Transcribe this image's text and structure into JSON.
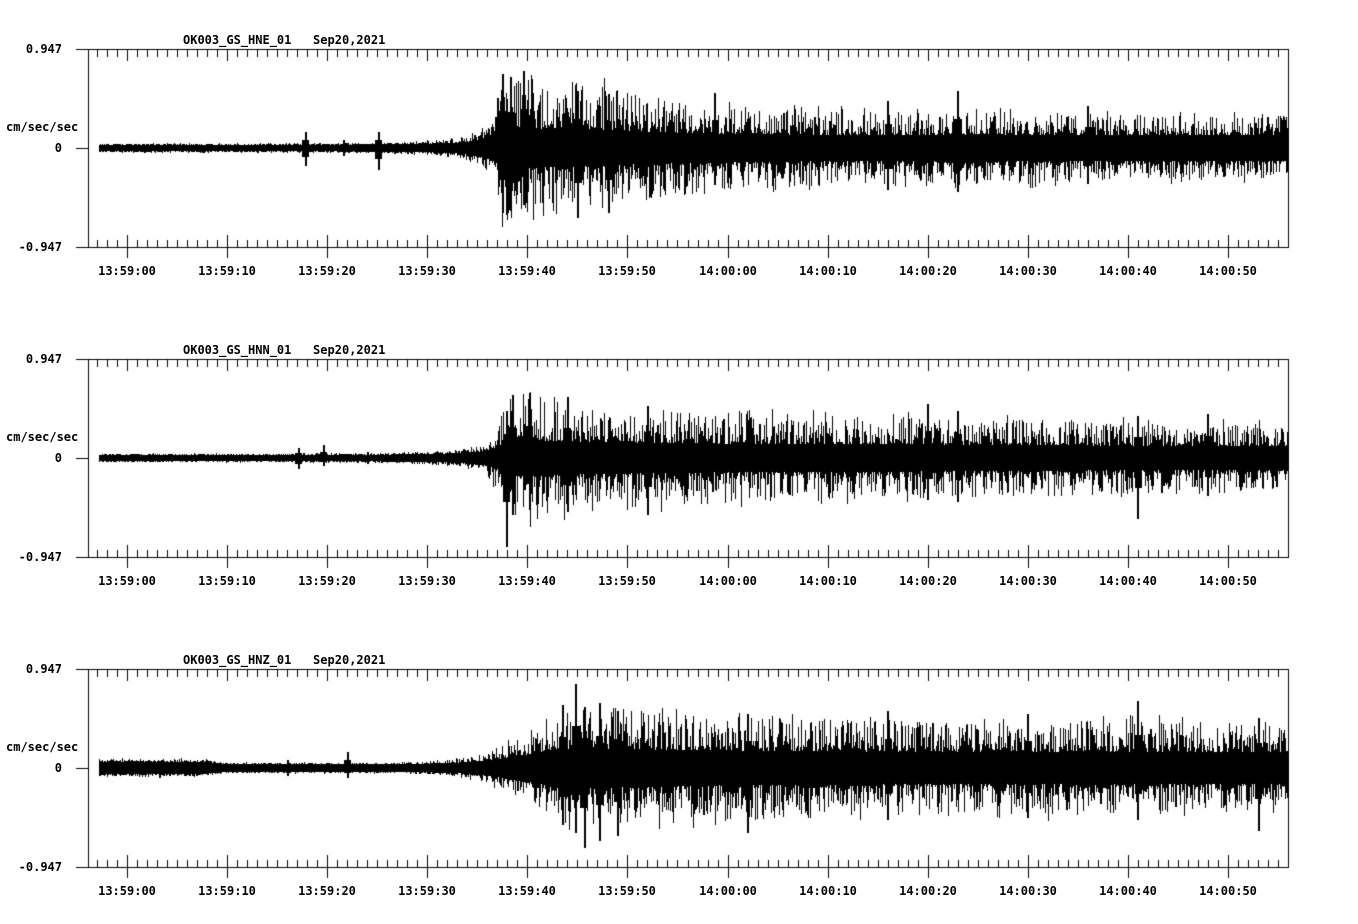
{
  "figure": {
    "background": "#ffffff",
    "ink": "#000000",
    "y_axis": {
      "top": "0.947",
      "zero": "0",
      "bottom": "-0.947",
      "unit": "cm/sec/sec"
    },
    "x_tick_labels": [
      "13:59:00",
      "13:59:10",
      "13:59:20",
      "13:59:30",
      "13:59:40",
      "13:59:50",
      "14:00:00",
      "14:00:10",
      "14:00:20",
      "14:00:30",
      "14:00:40",
      "14:00:50"
    ],
    "panels": [
      {
        "title": "OK003_GS_HNE_01   Sep20,2021"
      },
      {
        "title": "OK003_GS_HNN_01   Sep20,2021"
      },
      {
        "title": "OK003_GS_HNZ_01   Sep20,2021"
      }
    ]
  },
  "chart_data": [
    {
      "type": "line",
      "subtype": "seismogram",
      "title": "OK003_GS_HNE_01",
      "date_label": "Sep20,2021",
      "ylabel": "cm/sec/sec",
      "ylim": [
        -0.947,
        0.947
      ],
      "y_ticks": [
        0.947,
        0,
        -0.947
      ],
      "x_tick_labels": [
        "13:59:00",
        "13:59:10",
        "13:59:20",
        "13:59:30",
        "13:59:40",
        "13:59:50",
        "14:00:00",
        "14:00:10",
        "14:00:20",
        "14:00:30",
        "14:00:40",
        "14:00:50"
      ],
      "x_major_interval_s": 10,
      "x_minor_interval_s": 1,
      "window_relative_s": [
        -2.8,
        115.9
      ],
      "seed": 101,
      "amplitude_envelope": [
        [
          -3,
          0.045
        ],
        [
          15,
          0.045
        ],
        [
          25,
          0.05
        ],
        [
          30,
          0.07
        ],
        [
          33,
          0.1
        ],
        [
          35,
          0.16
        ],
        [
          36.5,
          0.3
        ],
        [
          37.4,
          0.68
        ],
        [
          39,
          0.72
        ],
        [
          43,
          0.66
        ],
        [
          47,
          0.62
        ],
        [
          52,
          0.5
        ],
        [
          58,
          0.42
        ],
        [
          65,
          0.38
        ],
        [
          75,
          0.35
        ],
        [
          85,
          0.36
        ],
        [
          95,
          0.33
        ],
        [
          105,
          0.31
        ],
        [
          116,
          0.31
        ]
      ],
      "dense_core": [
        [
          -3,
          0.032
        ],
        [
          15,
          0.03
        ],
        [
          25,
          0.034
        ],
        [
          30,
          0.04
        ],
        [
          33,
          0.05
        ],
        [
          35,
          0.07
        ],
        [
          36.5,
          0.12
        ],
        [
          37.4,
          0.17
        ],
        [
          39,
          0.18
        ],
        [
          43,
          0.18
        ],
        [
          47,
          0.17
        ],
        [
          52,
          0.15
        ],
        [
          58,
          0.14
        ],
        [
          65,
          0.13
        ],
        [
          75,
          0.12
        ],
        [
          85,
          0.13
        ],
        [
          95,
          0.12
        ],
        [
          105,
          0.12
        ],
        [
          116,
          0.12
        ]
      ],
      "notable_spikes": [
        [
          17.8,
          0.15,
          0.17
        ],
        [
          21.6,
          0.08,
          0.08
        ],
        [
          25.1,
          0.15,
          0.21
        ],
        [
          37.5,
          0.71,
          0.62
        ],
        [
          38.3,
          0.68,
          0.6
        ],
        [
          39.6,
          0.74,
          0.55
        ],
        [
          45.0,
          0.55,
          0.67
        ],
        [
          48.1,
          0.52,
          0.62
        ],
        [
          58.7,
          0.53,
          0.35
        ],
        [
          76.0,
          0.45,
          0.4
        ],
        [
          83.0,
          0.55,
          0.42
        ],
        [
          96.0,
          0.4,
          0.34
        ]
      ]
    },
    {
      "type": "line",
      "subtype": "seismogram",
      "title": "OK003_GS_HNN_01",
      "date_label": "Sep20,2021",
      "ylabel": "cm/sec/sec",
      "ylim": [
        -0.947,
        0.947
      ],
      "y_ticks": [
        0.947,
        0,
        -0.947
      ],
      "x_tick_labels": [
        "13:59:00",
        "13:59:10",
        "13:59:20",
        "13:59:30",
        "13:59:40",
        "13:59:50",
        "14:00:00",
        "14:00:10",
        "14:00:20",
        "14:00:30",
        "14:00:40",
        "14:00:50"
      ],
      "x_major_interval_s": 10,
      "x_minor_interval_s": 1,
      "window_relative_s": [
        -2.8,
        115.9
      ],
      "seed": 202,
      "amplitude_envelope": [
        [
          -3,
          0.042
        ],
        [
          15,
          0.042
        ],
        [
          25,
          0.05
        ],
        [
          30,
          0.06
        ],
        [
          33,
          0.08
        ],
        [
          35.5,
          0.13
        ],
        [
          37,
          0.3
        ],
        [
          37.8,
          0.58
        ],
        [
          39,
          0.62
        ],
        [
          43,
          0.58
        ],
        [
          48,
          0.52
        ],
        [
          55,
          0.46
        ],
        [
          65,
          0.42
        ],
        [
          75,
          0.4
        ],
        [
          85,
          0.38
        ],
        [
          95,
          0.36
        ],
        [
          105,
          0.34
        ],
        [
          116,
          0.33
        ]
      ],
      "dense_core": [
        [
          -3,
          0.03
        ],
        [
          15,
          0.028
        ],
        [
          25,
          0.032
        ],
        [
          30,
          0.036
        ],
        [
          33,
          0.045
        ],
        [
          35.5,
          0.06
        ],
        [
          37,
          0.1
        ],
        [
          37.8,
          0.16
        ],
        [
          39,
          0.17
        ],
        [
          43,
          0.16
        ],
        [
          48,
          0.15
        ],
        [
          55,
          0.14
        ],
        [
          65,
          0.13
        ],
        [
          75,
          0.13
        ],
        [
          85,
          0.12
        ],
        [
          95,
          0.12
        ],
        [
          105,
          0.11
        ],
        [
          116,
          0.11
        ]
      ],
      "notable_spikes": [
        [
          17.1,
          0.1,
          0.11
        ],
        [
          19.6,
          0.12,
          0.08
        ],
        [
          24.0,
          0.06,
          0.06
        ],
        [
          37.9,
          0.45,
          0.85
        ],
        [
          38.5,
          0.6,
          0.55
        ],
        [
          40.2,
          0.62,
          0.5
        ],
        [
          44.0,
          0.58,
          0.52
        ],
        [
          52.0,
          0.5,
          0.55
        ],
        [
          80.0,
          0.52,
          0.4
        ],
        [
          83.0,
          0.45,
          0.42
        ],
        [
          101.0,
          0.4,
          0.58
        ],
        [
          108.0,
          0.42,
          0.36
        ]
      ]
    },
    {
      "type": "line",
      "subtype": "seismogram",
      "title": "OK003_GS_HNZ_01",
      "date_label": "Sep20,2021",
      "ylabel": "cm/sec/sec",
      "ylim": [
        -0.947,
        0.947
      ],
      "y_ticks": [
        0.947,
        0,
        -0.947
      ],
      "x_tick_labels": [
        "13:59:00",
        "13:59:10",
        "13:59:20",
        "13:59:30",
        "13:59:40",
        "13:59:50",
        "14:00:00",
        "14:00:10",
        "14:00:20",
        "14:00:30",
        "14:00:40",
        "14:00:50"
      ],
      "x_major_interval_s": 10,
      "x_minor_interval_s": 1,
      "window_relative_s": [
        -2.8,
        115.9
      ],
      "seed": 303,
      "amplitude_envelope": [
        [
          -3,
          0.085
        ],
        [
          7,
          0.085
        ],
        [
          10,
          0.052
        ],
        [
          27,
          0.052
        ],
        [
          31,
          0.07
        ],
        [
          34,
          0.1
        ],
        [
          36,
          0.15
        ],
        [
          38,
          0.24
        ],
        [
          40,
          0.33
        ],
        [
          42,
          0.44
        ],
        [
          44,
          0.55
        ],
        [
          46,
          0.6
        ],
        [
          50,
          0.56
        ],
        [
          56,
          0.52
        ],
        [
          64,
          0.5
        ],
        [
          72,
          0.47
        ],
        [
          80,
          0.45
        ],
        [
          88,
          0.44
        ],
        [
          96,
          0.46
        ],
        [
          104,
          0.45
        ],
        [
          110,
          0.43
        ],
        [
          116,
          0.42
        ]
      ],
      "dense_core": [
        [
          -3,
          0.062
        ],
        [
          7,
          0.06
        ],
        [
          10,
          0.036
        ],
        [
          27,
          0.034
        ],
        [
          31,
          0.042
        ],
        [
          34,
          0.055
        ],
        [
          36,
          0.07
        ],
        [
          38,
          0.1
        ],
        [
          40,
          0.13
        ],
        [
          42,
          0.16
        ],
        [
          44,
          0.18
        ],
        [
          46,
          0.19
        ],
        [
          50,
          0.18
        ],
        [
          56,
          0.17
        ],
        [
          64,
          0.16
        ],
        [
          72,
          0.16
        ],
        [
          80,
          0.15
        ],
        [
          88,
          0.15
        ],
        [
          96,
          0.16
        ],
        [
          104,
          0.15
        ],
        [
          110,
          0.15
        ],
        [
          116,
          0.15
        ]
      ],
      "notable_spikes": [
        [
          16.0,
          0.08,
          0.08
        ],
        [
          22.0,
          0.15,
          0.1
        ],
        [
          43.5,
          0.6,
          0.55
        ],
        [
          44.8,
          0.8,
          0.62
        ],
        [
          45.7,
          0.58,
          0.77
        ],
        [
          47.2,
          0.62,
          0.7
        ],
        [
          49.0,
          0.55,
          0.65
        ],
        [
          62.0,
          0.52,
          0.62
        ],
        [
          76.0,
          0.55,
          0.5
        ],
        [
          90.0,
          0.52,
          0.48
        ],
        [
          101.0,
          0.64,
          0.5
        ],
        [
          113.0,
          0.48,
          0.6
        ]
      ]
    }
  ]
}
